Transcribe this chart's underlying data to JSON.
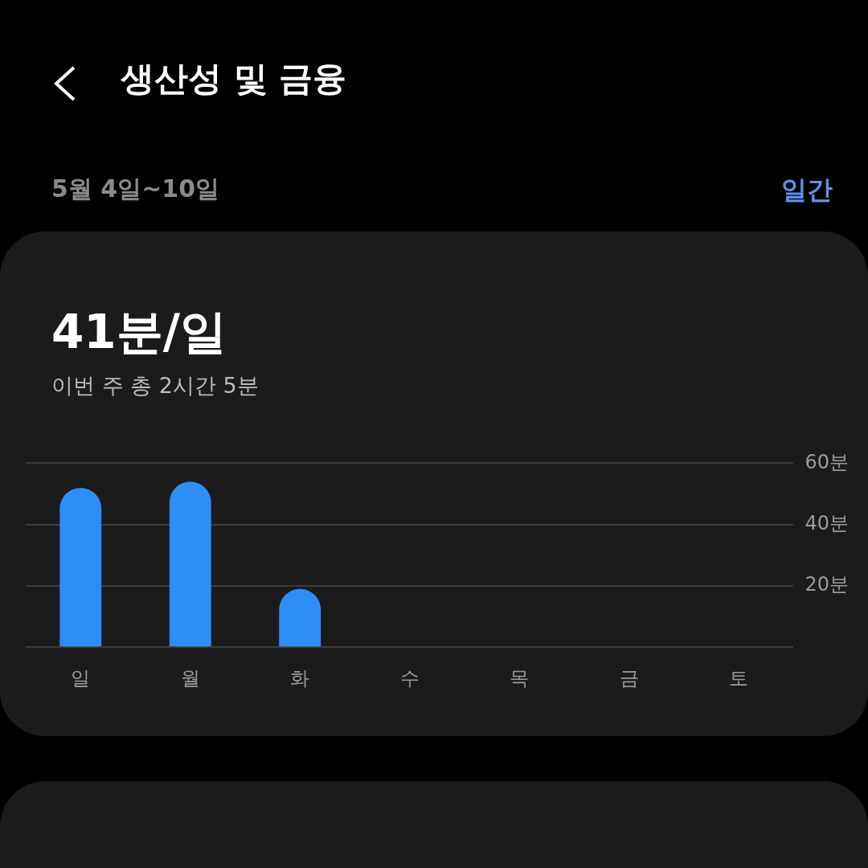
{
  "chart_data": {
    "type": "bar",
    "title": "생산성 및 금융",
    "subtitle": "5월 4일~10일",
    "annotations": [
      "41분/일",
      "이번 주 총 2시간 5분",
      "일간"
    ],
    "categories": [
      "일",
      "월",
      "화",
      "수",
      "목",
      "금",
      "토"
    ],
    "values": [
      52,
      54,
      19,
      null,
      null,
      null,
      null
    ],
    "color": "#2f8ef5",
    "ylim": [
      0,
      60
    ],
    "yticks": [
      {
        "value": 0,
        "label": null
      },
      {
        "value": 20,
        "label": "20분"
      },
      {
        "value": 40,
        "label": "40분"
      },
      {
        "value": 60,
        "label": "60분"
      }
    ],
    "grid": "y",
    "legend": false
  }
}
